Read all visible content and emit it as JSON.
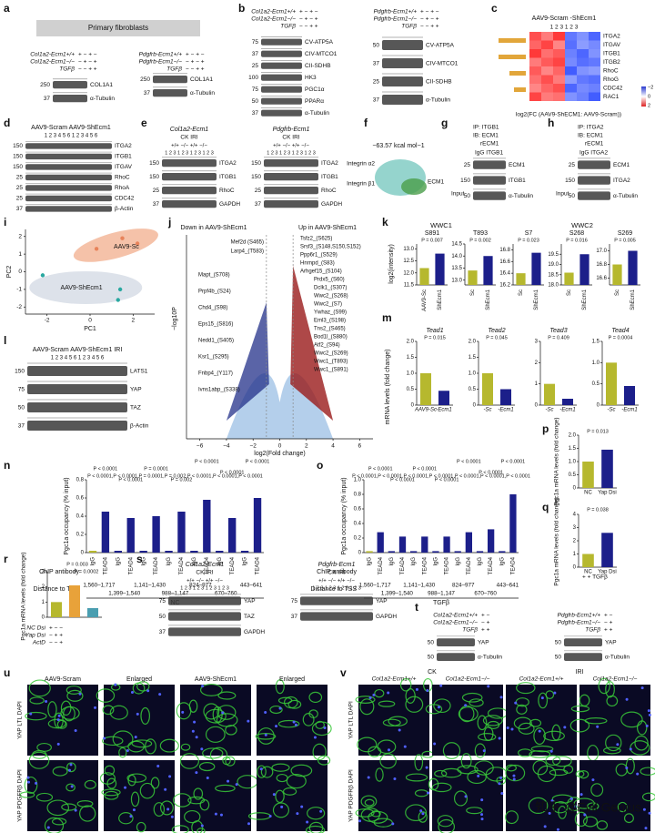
{
  "panels": {
    "a": {
      "label": "a",
      "title": "Primary fibroblasts",
      "left": {
        "rows": [
          "Col1a2-Ecm1+/+",
          "Col1a2-Ecm1−/−",
          "TGFβ"
        ],
        "signs": [
          "+  −  +  −",
          "−  +  −  +",
          "−  −  +  +"
        ],
        "mw": [
          "250",
          "37"
        ],
        "bands": [
          "COL1A1",
          "α-Tubulin"
        ]
      },
      "right": {
        "rows": [
          "Pdgfrb-Ecm1+/+",
          "Pdgfrb-Ecm1−/−",
          "TGFβ"
        ],
        "signs": [
          "+  −  +  −",
          "−  +  −  +",
          "−  −  +  +"
        ],
        "mw": [
          "250",
          "37"
        ],
        "bands": [
          "COL1A1",
          "α-Tubulin"
        ]
      }
    },
    "b": {
      "label": "b",
      "left": {
        "rows": [
          "Col1a2-Ecm1+/+",
          "Col1a2-Ecm1−/−",
          "TGFβ"
        ],
        "signs": [
          "+ − + −",
          "− + − +",
          "− − + +"
        ],
        "mw": [
          "75",
          "37",
          "25",
          "100",
          "75",
          "50",
          "37"
        ],
        "bands": [
          "CV-ATP5A",
          "CIV-MTCO1",
          "CII-SDHB",
          "HK3",
          "PGC1α",
          "PPARα",
          "α-Tubulin"
        ]
      },
      "right": {
        "rows": [
          "Pdgfrb-Ecm1+/+",
          "Pdgfrb-Ecm1−/−",
          "TGFβ"
        ],
        "signs": [
          "+ − + −",
          "− + − +",
          "− − + +"
        ],
        "mw": [
          "50",
          "37",
          "25",
          "37"
        ],
        "bands": [
          "CV-ATP5A",
          "CIV-MTCO1",
          "CII-SDHB",
          "α-Tubulin"
        ]
      }
    },
    "c": {
      "label": "c",
      "header": "AAV9-Scram  -ShEcm1",
      "lanes": "1  2  3  1  2  3",
      "rows": [
        "ITGA2",
        "ITGAV",
        "ITGB1",
        "ITGB2",
        "RhoC",
        "RhoG",
        "CDC42",
        "RAC1"
      ],
      "matrix": [
        [
          1.6,
          1.2,
          1.8,
          -1.5,
          -1.2,
          -1.7
        ],
        [
          1.4,
          1.7,
          1.1,
          -1.6,
          -1.1,
          -1.3
        ],
        [
          1.8,
          1.3,
          1.5,
          -1.4,
          -1.7,
          -1.2
        ],
        [
          1.2,
          1.5,
          1.7,
          -1.3,
          -1.6,
          -1.5
        ],
        [
          1.5,
          1.1,
          1.4,
          -1.8,
          -1.2,
          -1.1
        ],
        [
          1.3,
          1.6,
          1.2,
          -1.1,
          -1.5,
          -1.6
        ],
        [
          1.1,
          1.4,
          1.6,
          -1.7,
          -1.3,
          -1.4
        ],
        [
          1.7,
          1.2,
          1.3,
          -1.2,
          -1.4,
          -1.8
        ]
      ],
      "colorbar": [
        "−2",
        "0",
        "2"
      ],
      "xlabel": "log2(FC (AAV9-ShECM1: AAV9-Scram))"
    },
    "d": {
      "label": "d",
      "header": "AAV9-Scram AAV9-ShEcm1",
      "lanes": "1 2 3 4 5 6 1 2 3 4 5 6",
      "mw": [
        "150",
        "150",
        "150",
        "25",
        "25",
        "25",
        "37"
      ],
      "bands": [
        "ITGA2",
        "ITGB1",
        "ITGAV",
        "RhoC",
        "RhoA",
        "CDC42",
        "β-Actin"
      ]
    },
    "e": {
      "label": "e",
      "left": {
        "title": "Col1a2-Ecm1",
        "groups": "CK          IRI",
        "geno": "+/+   −/−   +/+   −/−",
        "lanes": "1 2 3 1 2 3 1 2 3 1 2 3",
        "mw": [
          "150",
          "150",
          "25",
          "37"
        ],
        "bands": [
          "ITGA2",
          "ITGB1",
          "RhoC",
          "GAPDH"
        ]
      },
      "right": {
        "title": "Pdgfrb-Ecm1",
        "groups": "CK          IRI",
        "geno": "+/+   −/−   +/+   −/−",
        "lanes": "1 2 3 1 2 3 1 2 3 1 2 3",
        "mw": [
          "150",
          "150",
          "25",
          "37"
        ],
        "bands": [
          "ITGA2",
          "ITGB1",
          "RhoC",
          "GAPDH"
        ]
      }
    },
    "f": {
      "label": "f",
      "energy": "−63.57 kcal mol−1",
      "a2": "Integrin α2",
      "b1": "Integrin β1",
      "ecm": "ECM1"
    },
    "g": {
      "label": "g",
      "ip": "IP: ITGB1",
      "ib": "IB: ECM1",
      "r": "rECM1",
      "lanes": "IgG ITGB1",
      "mw": [
        "25",
        "150",
        "50"
      ],
      "bands": [
        "ECM1",
        "ITGB1",
        "α-Tubulin"
      ],
      "input": "Input"
    },
    "h": {
      "label": "h",
      "ip": "IP: ITGA2",
      "ib": "IB: ECM1",
      "r": "rECM1",
      "lanes": "IgG ITGA2",
      "mw": [
        "25",
        "150",
        "50"
      ],
      "bands": [
        "ECM1",
        "ITGA2",
        "α-Tubulin"
      ],
      "input": "Input"
    },
    "i": {
      "label": "i",
      "xlabel": "PC1",
      "ylabel": "PC2",
      "sc": "AAV9-Sc",
      "sh": "AAV9-ShEcm1",
      "xlim": [
        -3,
        3
      ],
      "xticks": [
        -2,
        0,
        2
      ],
      "ylim": [
        -2.4,
        2.4
      ],
      "yticks": [
        2,
        1,
        0,
        -1,
        -2
      ],
      "series": [
        {
          "name": "Sc",
          "color": "#e8835a",
          "x": [
            0.3,
            1.5,
            2.2
          ],
          "y": [
            1.3,
            1.9,
            1.6
          ]
        },
        {
          "name": "Sh",
          "color": "#2aa8a0",
          "x": [
            -2.2,
            1.4,
            1.3
          ],
          "y": [
            -0.2,
            -1.0,
            -1.6
          ]
        }
      ]
    },
    "j": {
      "label": "j",
      "down": "Down in AAV9-ShEcm1",
      "up": "Up in AAV9-ShEcm1",
      "xlabel": "log2(Fold change)",
      "ylabel": "−log10P",
      "xlim": [
        -7,
        7
      ],
      "xticks": [
        {
          "value": -6,
          "label": "−6"
        },
        {
          "value": -4,
          "label": "−4"
        },
        {
          "value": -2,
          "label": "−2"
        },
        0,
        2,
        4,
        6
      ],
      "left": [
        "Mef2d (S465)",
        "Larp4_(T583)",
        "Mapt_(S708)",
        "Prpf4b_(S24)",
        "Chd4_(S98)",
        "Eps15_(S816)",
        "Nedd1_(S405)",
        "Ksr1_(S295)",
        "Fnbp4_(Y117)",
        "Ivns1abp_(S338)"
      ],
      "right": [
        "Tsfz2_(S625)",
        "Srsf3_(S148,S150,S152)",
        "Ppp6r1_(S529)",
        "Hnrnpd_(S83)",
        "Arhgef15_(S104)",
        "Prdx5_(S60)",
        "Dclk1_(S307)",
        "Wwc2_(S268)",
        "Wwc2_(S7)",
        "Ywhaz_(S99)",
        "Eml3_(S198)",
        "Tns2_(S465)",
        "Bod1l_(S880)",
        "Atf2_(S94)",
        "Wwc2_(S269)",
        "Wwc1_(T893)",
        "Wwc1_(S891)"
      ]
    },
    "k": {
      "label": "k",
      "g1": "WWC1",
      "g2": "WWC2",
      "ylabel": "log2(intensity)",
      "charts": [
        {
          "title": "S891",
          "categories": [
            "AAV9-Sc",
            "ShEcm1"
          ],
          "values": [
            12.2,
            12.8
          ],
          "ylim": [
            11.5,
            13.2
          ],
          "yticks": [
            {
              "value": 11.5,
              "label": "11.5"
            },
            {
              "value": 12,
              "label": "12.0"
            },
            {
              "value": 12.5,
              "label": "12.5"
            },
            {
              "value": 13,
              "label": "13.0"
            }
          ],
          "p": "P = 0.007"
        },
        {
          "title": "T893",
          "categories": [
            "Sc",
            "ShEcm1"
          ],
          "values": [
            13.4,
            14.0
          ],
          "ylim": [
            12.8,
            14.5
          ],
          "yticks": [
            {
              "value": 13,
              "label": "13.0"
            },
            {
              "value": 13.5,
              "label": "13.5"
            },
            {
              "value": 14,
              "label": "14.0"
            },
            {
              "value": 14.5,
              "label": "14.5"
            }
          ],
          "p": "P = 0.002"
        },
        {
          "title": "S7",
          "categories": [
            "Sc",
            "ShEcm1"
          ],
          "values": [
            16.4,
            16.75
          ],
          "ylim": [
            16.2,
            16.9
          ],
          "yticks": [
            {
              "value": 16.2,
              "label": "16.2"
            },
            {
              "value": 16.4,
              "label": "16.4"
            },
            {
              "value": 16.6,
              "label": "16.6"
            },
            {
              "value": 16.8,
              "label": "16.8"
            }
          ],
          "p": "P = 0.023"
        },
        {
          "title": "S268",
          "categories": [
            "Sc",
            "ShEcm1"
          ],
          "values": [
            18.6,
            19.5
          ],
          "ylim": [
            18,
            20
          ],
          "yticks": [
            {
              "value": 18,
              "label": "18.0"
            },
            {
              "value": 18.5,
              "label": "18.5"
            },
            {
              "value": 19,
              "label": "19.0"
            },
            {
              "value": 19.5,
              "label": "19.5"
            }
          ],
          "p": "P = 0.016"
        },
        {
          "title": "S269",
          "categories": [
            "Sc",
            "ShEcm1"
          ],
          "values": [
            16.8,
            17.0
          ],
          "ylim": [
            16.5,
            17.1
          ],
          "yticks": [
            {
              "value": 16.6,
              "label": "16.6"
            },
            {
              "value": 16.8,
              "label": "16.8"
            },
            {
              "value": 17,
              "label": "17.0"
            }
          ],
          "p": "P = 0.005"
        }
      ]
    },
    "l": {
      "label": "l",
      "header": "AAV9-Scram  AAV9-ShEcm1   IRI",
      "lanes": "1  2  3  4  5  6  1  2  3  4  5  6",
      "mw": [
        "150",
        "75",
        "50",
        "37"
      ],
      "bands": [
        "LATS1",
        "YAP",
        "TAZ",
        "β-Actin"
      ]
    },
    "m": {
      "label": "m",
      "ylabel": "mRNA levels (fold change)",
      "charts": [
        {
          "title": "Tead1",
          "categories": [
            "AAV9-Sc",
            "-Ecm1"
          ],
          "values": [
            1.0,
            0.45
          ],
          "ylim": [
            0,
            2
          ],
          "yticks": [
            0,
            {
              "value": 0.5,
              "label": "0.5"
            },
            {
              "value": 1,
              "label": "1.0"
            },
            {
              "value": 1.5,
              "label": "1.5"
            },
            {
              "value": 2,
              "label": "2.0"
            }
          ],
          "p": "P = 0.015"
        },
        {
          "title": "Tead2",
          "categories": [
            "-Sc",
            "-Ecm1"
          ],
          "values": [
            1.0,
            0.5
          ],
          "ylim": [
            0,
            2
          ],
          "yticks": [
            0,
            {
              "value": 0.5,
              "label": "0.5"
            },
            {
              "value": 1,
              "label": "1.0"
            },
            {
              "value": 1.5,
              "label": "1.5"
            },
            {
              "value": 2,
              "label": "2.0"
            }
          ],
          "p": "P = 0.045"
        },
        {
          "title": "Tead3",
          "categories": [
            "-Sc",
            "-Ecm1"
          ],
          "values": [
            1.0,
            0.3
          ],
          "ylim": [
            0,
            3
          ],
          "yticks": [
            0,
            1,
            2,
            3
          ],
          "p": "P = 0.409"
        },
        {
          "title": "Tead4",
          "categories": [
            "-Sc",
            "-Ecm1"
          ],
          "values": [
            1.0,
            0.45
          ],
          "ylim": [
            0,
            1.5
          ],
          "yticks": [
            0,
            {
              "value": 0.5,
              "label": "0.5"
            },
            {
              "value": 1,
              "label": "1.0"
            },
            {
              "value": 1.5,
              "label": "1.5"
            }
          ],
          "p": "P = 0.0004"
        }
      ]
    },
    "n": {
      "label": "n",
      "ylabel": "Pgc1a occupancy (% input)",
      "chip": "ChIP antibody",
      "dist": "Distance to TSS",
      "cond": "NC",
      "categories": [
        "IgG",
        "TEAD4",
        "IgG",
        "TEAD4",
        "IgG",
        "TEAD4",
        "IgG",
        "TEAD4",
        "IgG",
        "TEAD4",
        "IgG",
        "TEAD4",
        "IgG",
        "TEAD4"
      ],
      "values": [
        0.02,
        0.45,
        0.02,
        0.38,
        0.02,
        0.4,
        0.02,
        0.45,
        0.02,
        0.58,
        0.02,
        0.38,
        0.02,
        0.6
      ],
      "ylim": [
        0,
        0.8
      ],
      "yticks": [
        0,
        {
          "value": 0.2,
          "label": "0.2"
        },
        {
          "value": 0.4,
          "label": "0.4"
        },
        {
          "value": 0.6,
          "label": "0.6"
        },
        {
          "value": 0.8,
          "label": "0.8"
        }
      ],
      "distances": [
        "1,560–1,717",
        "1,399–1,540",
        "1,141–1,430",
        "988–1,147",
        "824–977",
        "670–760",
        "443–641"
      ],
      "p": [
        "P < 0.0001",
        "P < 0.0001",
        "P = 0.0001",
        "P = 0.002",
        "P < 0.0001",
        "P < 0.0001",
        "P < 0.0001"
      ]
    },
    "o": {
      "label": "o",
      "ylabel": "Pgc1a occupancy (% input)",
      "chip": "ChIP antibody",
      "dist": "Distance to TSS",
      "cond": "TGFβ",
      "categories": [
        "IgG",
        "TEAD4",
        "IgG",
        "TEAD4",
        "IgG",
        "TEAD4",
        "IgG",
        "TEAD4",
        "IgG",
        "TEAD4",
        "IgG",
        "TEAD4",
        "IgG",
        "TEAD4"
      ],
      "values": [
        0.02,
        0.28,
        0.02,
        0.22,
        0.02,
        0.22,
        0.02,
        0.22,
        0.02,
        0.28,
        0.02,
        0.32,
        0.02,
        0.8
      ],
      "ylim": [
        0,
        1
      ],
      "yticks": [
        0,
        {
          "value": 0.2,
          "label": "0.2"
        },
        {
          "value": 0.4,
          "label": "0.4"
        },
        {
          "value": 0.6,
          "label": "0.6"
        },
        {
          "value": 0.8,
          "label": "0.8"
        },
        {
          "value": 1,
          "label": "1.0"
        }
      ],
      "distances": [
        "1,560–1,717",
        "1,399–1,540",
        "1,141–1,430",
        "988–1,147",
        "824–977",
        "670–760",
        "443–641"
      ],
      "p": [
        "P < 0.0001",
        "P < 0.0001",
        "P < 0.0001",
        "P < 0.0001",
        "P < 0.0001",
        "P < 0.0001",
        "P < 0.0001"
      ]
    },
    "p": {
      "label": "p",
      "ylabel": "Pgc1a mRNA levels (fold change)",
      "categories": [
        "NC",
        "Yap Dsi"
      ],
      "values": [
        1.0,
        1.45
      ],
      "ylim": [
        0,
        2
      ],
      "yticks": [
        0,
        {
          "value": 0.5,
          "label": "0.5"
        },
        {
          "value": 1,
          "label": "1.0"
        },
        {
          "value": 1.5,
          "label": "1.5"
        },
        {
          "value": 2,
          "label": "2.0"
        }
      ],
      "pv": "P = 0.013"
    },
    "q": {
      "label": "q",
      "ylabel": "Pgc1a mRNA levels (fold change)",
      "categories": [
        "NC",
        "Yap Dsi"
      ],
      "values": [
        1.0,
        2.6
      ],
      "ylim": [
        0,
        4
      ],
      "yticks": [
        0,
        1,
        2,
        3,
        4
      ],
      "pv": "P = 0.038",
      "extra": "+      +   TGFβ"
    },
    "r": {
      "label": "r",
      "ylabel": "Pgc1a mRNA levels (fold change)",
      "values": [
        1.0,
        2.1,
        0.6
      ],
      "ylim": [
        0,
        3
      ],
      "yticks": [
        0,
        1,
        2,
        3
      ],
      "p1": "P = 0.003",
      "p2": "P = 0.0002",
      "rows": [
        "NC Dsi",
        "Yap Dsi",
        "ActD"
      ],
      "signs": [
        "+   −   −",
        "−   +   +",
        "−   −   +"
      ]
    },
    "s": {
      "label": "s",
      "left": {
        "title": "Col1a2-Ecm1",
        "groups": "CK            IRI",
        "geno": "+/+   −/−   +/+   −/−",
        "lanes": "1 2 3 1 2 3 1 2 3 1 2 3",
        "mw": [
          "75",
          "50",
          "37"
        ],
        "bands": [
          "YAP",
          "TAZ",
          "GAPDH"
        ]
      },
      "right": {
        "title": "Pdgfrb-Ecm1",
        "groups": "CK            IRI",
        "geno": "+/+   −/−   +/+   −/−",
        "lanes": "1 2 3 1 2 3 1 2 3 1 2 3",
        "mw": [
          "75",
          "37"
        ],
        "bands": [
          "YAP",
          "GAPDH"
        ]
      }
    },
    "t": {
      "label": "t",
      "left": {
        "rows": [
          "Col1a2-Ecm1+/+",
          "Col1a2-Ecm1−/−",
          "TGFβ"
        ],
        "signs": [
          "+  −",
          "−  +",
          "+  +"
        ],
        "mw": [
          "50",
          "50"
        ],
        "bands": [
          "YAP",
          "α-Tubulin"
        ]
      },
      "right": {
        "rows": [
          "Pdgfrb-Ecm1+/+",
          "Pdgfrb-Ecm1−/−",
          "TGFβ"
        ],
        "signs": [
          "+  −",
          "−  +",
          "+  +"
        ],
        "mw": [
          "50",
          "50"
        ],
        "bands": [
          "YAP",
          "α-Tubulin"
        ]
      }
    },
    "u": {
      "label": "u",
      "cols": [
        "AAV9-Scram",
        "Enlarged",
        "AAV9-ShEcm1",
        "Enlarged"
      ],
      "rows": [
        "YAP LTL DAPI",
        "YAP PDGFRβ DAPI"
      ]
    },
    "v": {
      "label": "v",
      "groups": [
        "CK",
        "IRI"
      ],
      "cols": [
        "Col1a2-Ecm1+/+",
        "Col1a2-Ecm1−/−",
        "Col1a2-Ecm1+/+",
        "Col1a2-Ecm1−/−"
      ],
      "rows": [
        "YAP LTL DAPI",
        "YAP PDGFRβ DAPI"
      ]
    }
  },
  "watermark": "知乎 @Evil Genius"
}
